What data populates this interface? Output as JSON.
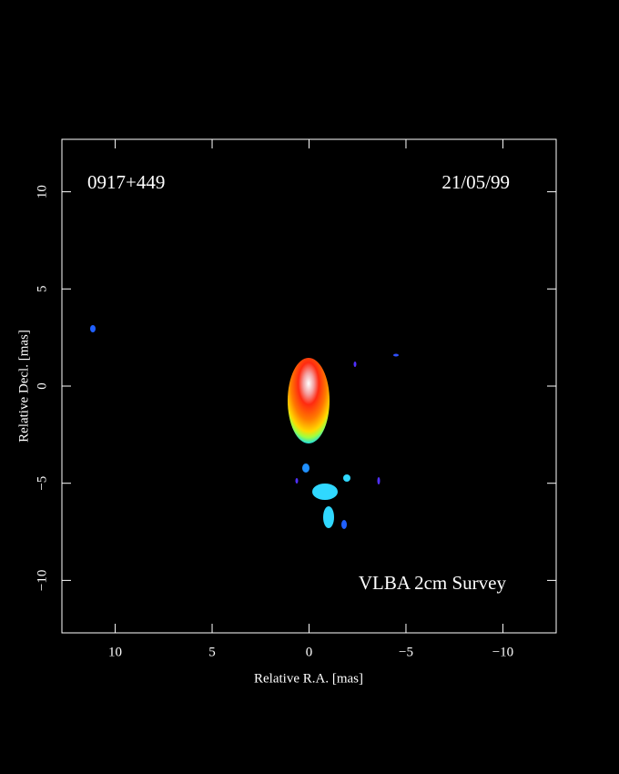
{
  "chart_data": {
    "type": "image",
    "title": "0917+449",
    "subtitle": "21/05/99",
    "annotation": "VLBA 2cm Survey",
    "x_label": "Relative R.A. [mas]",
    "y_label": "Relative Decl. [mas]",
    "xlim": [
      12.75,
      -12.75
    ],
    "ylim": [
      -12.7,
      12.7
    ],
    "xticks": [
      10,
      5,
      0,
      {
        "value": -5,
        "label": "−5"
      },
      {
        "value": -10,
        "label": "−10"
      }
    ],
    "yticks": [
      {
        "value": -10,
        "label": "−10"
      },
      {
        "value": -5,
        "label": "−5"
      },
      0,
      5,
      10
    ]
  }
}
